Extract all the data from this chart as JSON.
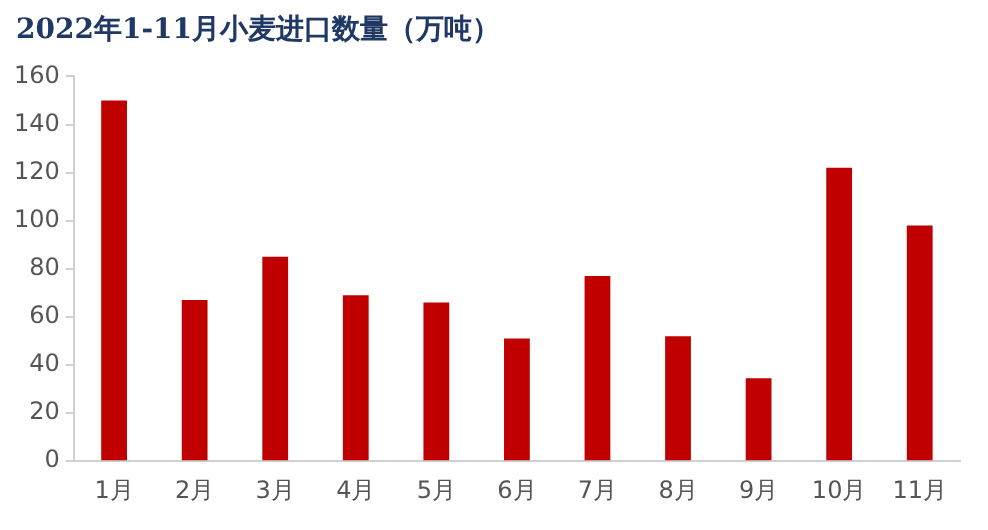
{
  "chart_data": {
    "type": "bar",
    "title": "2022年1-11月小麦进口数量（万吨）",
    "categories": [
      "1月",
      "2月",
      "3月",
      "4月",
      "5月",
      "6月",
      "7月",
      "8月",
      "9月",
      "10月",
      "11月"
    ],
    "values": [
      150,
      67,
      85,
      69,
      66,
      51,
      77,
      52,
      34.5,
      122,
      98
    ],
    "color": "#c00000",
    "ylim": [
      0,
      160
    ],
    "yticks": [
      0,
      20,
      40,
      60,
      80,
      100,
      120,
      140,
      160
    ],
    "grid": false,
    "legend": false
  }
}
